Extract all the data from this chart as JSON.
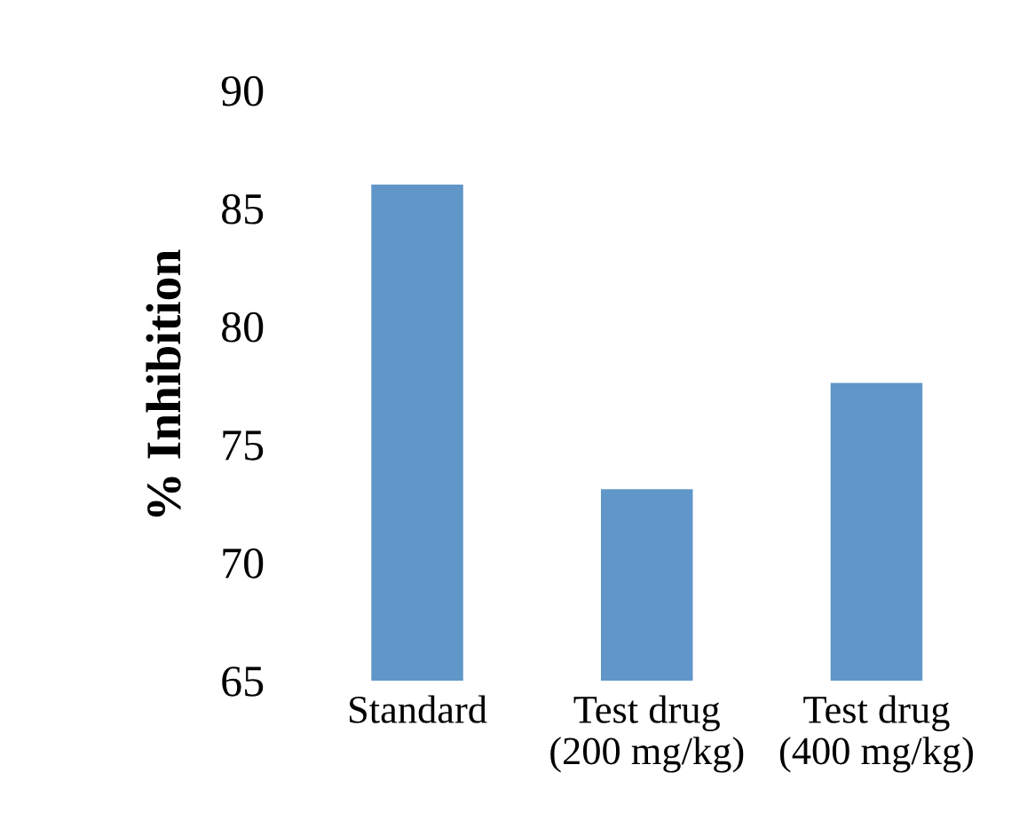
{
  "chart_data": {
    "type": "bar",
    "ylabel": "% Inhibition",
    "categories": [
      "Standard",
      "Test drug\n(200 mg/kg)",
      "Test drug\n(400 mg/kg)"
    ],
    "values": [
      86.0,
      73.1,
      77.6
    ],
    "color": "#6096c8",
    "ylim": [
      65,
      90
    ],
    "yticks": [
      65,
      70,
      75,
      80,
      85,
      90
    ],
    "grid": false,
    "legend": false
  }
}
